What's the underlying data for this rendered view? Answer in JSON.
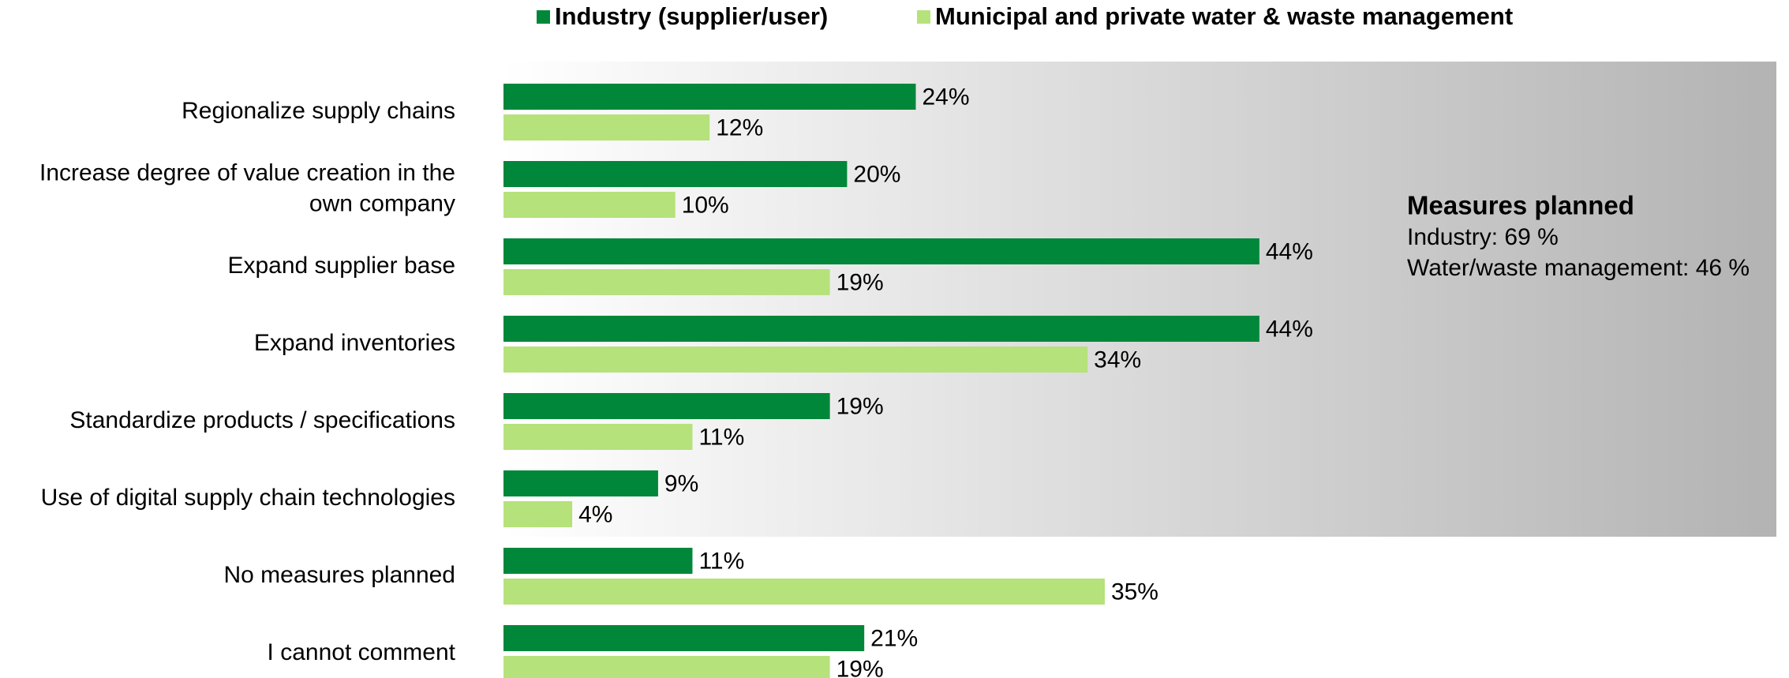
{
  "chart_data": {
    "type": "bar",
    "orientation": "horizontal",
    "categories": [
      "Regionalize supply chains",
      "Increase degree of value creation in the\nown company",
      "Expand supplier base",
      "Expand inventories",
      "Standardize products / specifications",
      "Use of digital supply chain technologies",
      "No measures planned",
      "I cannot comment"
    ],
    "series": [
      {
        "name": "Industry (supplier/user)",
        "color": "#00873a",
        "values": [
          24,
          20,
          44,
          44,
          19,
          9,
          11,
          21
        ],
        "value_labels": [
          "24%",
          "20%",
          "44%",
          "44%",
          "19%",
          "9%",
          "11%",
          "21%"
        ]
      },
      {
        "name": "Municipal and private water & waste management",
        "color": "#b5e27a",
        "values": [
          12,
          10,
          19,
          34,
          11,
          4,
          35,
          19
        ],
        "value_labels": [
          "12%",
          "10%",
          "19%",
          "34%",
          "11%",
          "4%",
          "35%",
          "19%"
        ]
      }
    ],
    "annotation": {
      "title": "Measures planned",
      "lines": [
        "Industry: 69 %",
        "Water/waste management: 46 %"
      ]
    }
  }
}
